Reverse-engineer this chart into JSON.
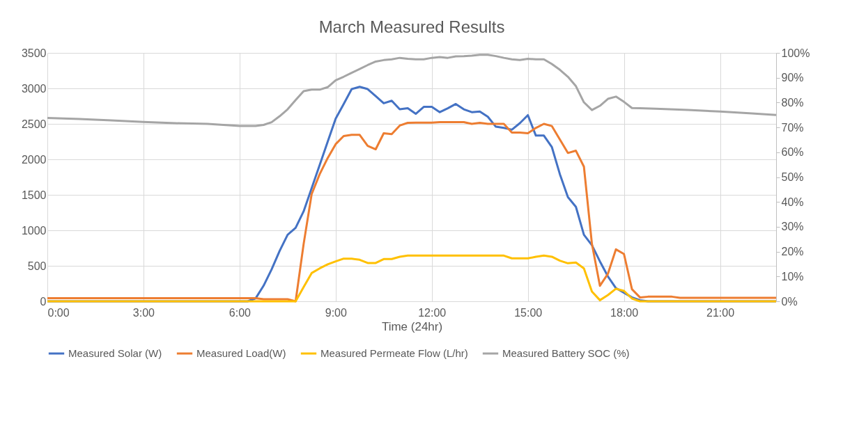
{
  "chart_data": {
    "type": "line",
    "title": "March Measured Results",
    "xlabel": "Time (24hr)",
    "xlim": [
      0,
      22.75
    ],
    "xticks": [
      {
        "value": 0,
        "label": "0:00"
      },
      {
        "value": 3,
        "label": "3:00"
      },
      {
        "value": 6,
        "label": "6:00"
      },
      {
        "value": 9,
        "label": "9:00"
      },
      {
        "value": 12,
        "label": "12:00"
      },
      {
        "value": 15,
        "label": "15:00"
      },
      {
        "value": 18,
        "label": "18:00"
      },
      {
        "value": 21,
        "label": "21:00"
      }
    ],
    "ylim": [
      0,
      3500
    ],
    "yticks": [
      0,
      500,
      1000,
      1500,
      2000,
      2500,
      3000,
      3500
    ],
    "y2lim": [
      0,
      100
    ],
    "y2ticks": [
      {
        "value": 0,
        "label": "0%"
      },
      {
        "value": 10,
        "label": "10%"
      },
      {
        "value": 20,
        "label": "20%"
      },
      {
        "value": 30,
        "label": "30%"
      },
      {
        "value": 40,
        "label": "40%"
      },
      {
        "value": 50,
        "label": "50%"
      },
      {
        "value": 60,
        "label": "60%"
      },
      {
        "value": 70,
        "label": "70%"
      },
      {
        "value": 80,
        "label": "80%"
      },
      {
        "value": 90,
        "label": "90%"
      },
      {
        "value": 100,
        "label": "100%"
      }
    ],
    "grid": true,
    "legend": "bottom",
    "series": [
      {
        "name": "Measured Solar (W)",
        "color": "#4472c4",
        "x": [
          0,
          6.25,
          6.5,
          6.75,
          7,
          7.25,
          7.5,
          7.75,
          8,
          8.25,
          8.5,
          8.75,
          9,
          9.25,
          9.5,
          9.75,
          10,
          10.25,
          10.5,
          10.75,
          11,
          11.25,
          11.5,
          11.75,
          12,
          12.25,
          12.5,
          12.75,
          13,
          13.25,
          13.5,
          13.75,
          14,
          14.25,
          14.5,
          14.75,
          15,
          15.25,
          15.5,
          15.75,
          16,
          16.25,
          16.5,
          16.75,
          17,
          17.25,
          17.5,
          17.75,
          18,
          18.25,
          18.5,
          18.75,
          22.75
        ],
        "values": [
          0,
          0,
          40,
          220,
          450,
          710,
          938,
          1036,
          1268,
          1593,
          1920,
          2247,
          2574,
          2780,
          2990,
          3022,
          2990,
          2890,
          2790,
          2826,
          2705,
          2720,
          2642,
          2740,
          2740,
          2665,
          2720,
          2780,
          2705,
          2665,
          2675,
          2600,
          2460,
          2443,
          2418,
          2510,
          2623,
          2335,
          2335,
          2172,
          1790,
          1468,
          1331,
          938,
          791,
          562,
          350,
          186,
          121,
          55,
          15,
          0,
          0
        ]
      },
      {
        "name": "Measured Load(W)",
        "color": "#ed7d31",
        "x": [
          0,
          6.5,
          6.75,
          7,
          7.25,
          7.5,
          7.75,
          8,
          8.25,
          8.5,
          8.75,
          9,
          9.25,
          9.5,
          9.75,
          10,
          10.25,
          10.5,
          10.75,
          11,
          11.25,
          11.5,
          11.75,
          12,
          12.25,
          12.5,
          12.75,
          13,
          13.25,
          13.5,
          13.75,
          14,
          14.25,
          14.5,
          14.75,
          15,
          15.25,
          15.5,
          15.75,
          16,
          16.25,
          16.5,
          16.75,
          17,
          17.25,
          17.5,
          17.75,
          18,
          18.25,
          18.5,
          18.75,
          19,
          19.25,
          19.5,
          19.75,
          22.75
        ],
        "values": [
          45,
          45,
          30,
          30,
          30,
          30,
          0,
          808,
          1510,
          1790,
          2018,
          2214,
          2329,
          2345,
          2345,
          2191,
          2142,
          2368,
          2355,
          2476,
          2515,
          2518,
          2518,
          2518,
          2525,
          2525,
          2525,
          2525,
          2500,
          2515,
          2500,
          2500,
          2500,
          2378,
          2378,
          2368,
          2443,
          2500,
          2469,
          2280,
          2090,
          2122,
          1897,
          808,
          219,
          389,
          732,
          667,
          170,
          55,
          65,
          65,
          65,
          65,
          50,
          50
        ]
      },
      {
        "name": "Measured Permeate Flow (L/hr)",
        "color": "#ffc000",
        "x": [
          0,
          7.75,
          8,
          8.25,
          8.5,
          8.75,
          9,
          9.25,
          9.5,
          9.75,
          10,
          10.25,
          10.5,
          10.75,
          11,
          11.25,
          14.25,
          14.5,
          14.75,
          15,
          15.25,
          15.5,
          15.75,
          16,
          16.25,
          16.5,
          16.75,
          17,
          17.25,
          17.5,
          17.75,
          18,
          18.25,
          18.5,
          22.75
        ],
        "values": [
          0,
          0,
          200,
          398,
          464,
          520,
          562,
          601,
          601,
          585,
          540,
          540,
          595,
          595,
          628,
          644,
          644,
          605,
          605,
          605,
          628,
          644,
          628,
          572,
          536,
          546,
          464,
          137,
          16,
          88,
          177,
          147,
          39,
          0,
          0
        ]
      },
      {
        "name": "Measured Battery SOC (%)",
        "color": "#a5a5a5",
        "axis": "y2",
        "x": [
          0,
          1,
          2,
          3,
          4,
          5,
          6,
          6.5,
          6.75,
          7,
          7.25,
          7.5,
          7.75,
          8,
          8.25,
          8.5,
          8.75,
          9,
          9.25,
          9.5,
          9.75,
          10,
          10.25,
          10.5,
          10.75,
          11,
          11.25,
          11.5,
          11.75,
          12,
          12.25,
          12.5,
          12.75,
          13,
          13.25,
          13.5,
          13.75,
          14,
          14.25,
          14.5,
          14.75,
          15,
          15.25,
          15.5,
          15.75,
          16,
          16.25,
          16.5,
          16.75,
          17,
          17.25,
          17.5,
          17.75,
          18,
          18.25,
          18.5,
          19,
          20,
          21,
          22,
          22.75
        ],
        "values": [
          73.8,
          73.4,
          72.8,
          72.2,
          71.7,
          71.4,
          70.6,
          70.6,
          71.0,
          72.1,
          74.5,
          77.3,
          81.0,
          84.6,
          85.2,
          85.2,
          86.2,
          89.0,
          90.4,
          92.0,
          93.5,
          95.1,
          96.5,
          97.1,
          97.4,
          98.0,
          97.6,
          97.4,
          97.4,
          98.0,
          98.3,
          98.0,
          98.6,
          98.7,
          98.9,
          99.2,
          99.2,
          98.7,
          98.0,
          97.4,
          97.1,
          97.6,
          97.4,
          97.4,
          95.5,
          93.2,
          90.4,
          86.6,
          80.1,
          77.0,
          78.7,
          81.5,
          82.4,
          80.3,
          77.8,
          77.7,
          77.5,
          77.0,
          76.4,
          75.6,
          75.0
        ]
      }
    ]
  }
}
